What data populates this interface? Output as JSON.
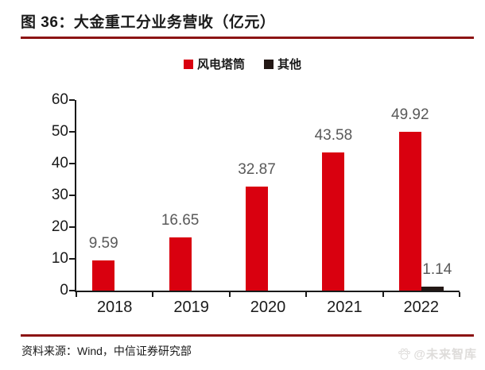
{
  "page": {
    "title": "图 36：大金重工分业务营收（亿元）",
    "source": "资料来源：Wind，中信证券研究部",
    "watermark": "@未来智库"
  },
  "colors": {
    "ink": "#1a1a1a",
    "value_label": "#595959",
    "accent_line": "#8c1414",
    "bar_red": "#d9000f",
    "bar_dark": "#231815",
    "watermark": "#dedcda",
    "background": "#ffffff"
  },
  "chart_data": {
    "type": "bar",
    "title": "图 36：大金重工分业务营收（亿元）",
    "unit": "亿元",
    "categories": [
      "2018",
      "2019",
      "2020",
      "2021",
      "2022"
    ],
    "series": [
      {
        "name": "风电塔筒",
        "color": "#d9000f",
        "values": [
          9.59,
          16.65,
          32.87,
          43.58,
          49.92
        ]
      },
      {
        "name": "其他",
        "color": "#231815",
        "values": [
          null,
          null,
          null,
          null,
          1.14
        ]
      }
    ],
    "ylim": [
      0,
      60
    ],
    "y_ticks": [
      0,
      10,
      20,
      30,
      40,
      50,
      60
    ],
    "xlabel": "",
    "ylabel": "",
    "grid": false,
    "legend_position": "top"
  }
}
